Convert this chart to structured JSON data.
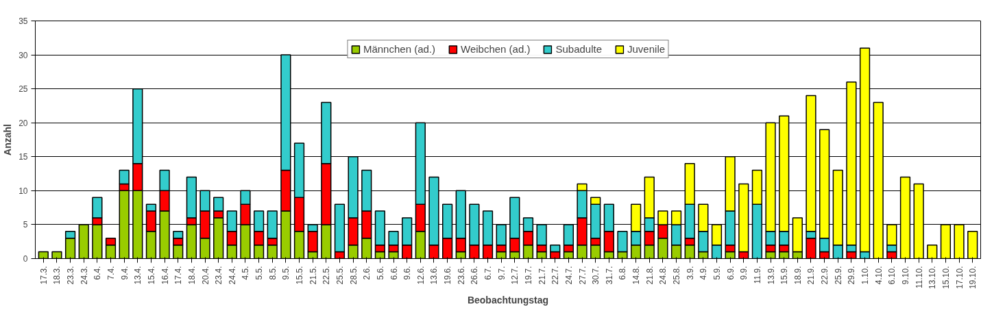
{
  "chart_data": {
    "type": "bar",
    "stacked": true,
    "xlabel": "Beobachtungstag",
    "ylabel": "Anzahl",
    "categories": [
      "17.3.",
      "18.3.",
      "23.3.",
      "24.3.",
      "6.4.",
      "7.4.",
      "9.4.",
      "13.4.",
      "15.4.",
      "16.4.",
      "17.4.",
      "18.4.",
      "20.4.",
      "23.4.",
      "24.4.",
      "4.5.",
      "5.5.",
      "8.5.",
      "9.5.",
      "15.5.",
      "21.5.",
      "22.5.",
      "25.5.",
      "28.5.",
      "2.6.",
      "5.6.",
      "6.6.",
      "9.6.",
      "12.6.",
      "13.6.",
      "19.6.",
      "23.6.",
      "26.6.",
      "6.7.",
      "9.7.",
      "12.7.",
      "19.7.",
      "21.7.",
      "22.7.",
      "24.7.",
      "27.7.",
      "30.7.",
      "31.7.",
      "6.8.",
      "14.8.",
      "21.8.",
      "24.8.",
      "25.8.",
      "3.9.",
      "4.9.",
      "5.9.",
      "6.9.",
      "9.9.",
      "11.9.",
      "13.9.",
      "15.9.",
      "18.9.",
      "21.9.",
      "22.9.",
      "25.9.",
      "29.9.",
      "1.10.",
      "4.10.",
      "6.10.",
      "9.10.",
      "11.10.",
      "13.10.",
      "15.10.",
      "17.10.",
      "19.10."
    ],
    "series": [
      {
        "name": "Männchen (ad.)",
        "color": "#99cc00",
        "values": [
          1,
          1,
          3,
          5,
          5,
          2,
          10,
          10,
          4,
          7,
          2,
          5,
          3,
          6,
          2,
          5,
          2,
          2,
          7,
          4,
          1,
          5,
          0,
          2,
          3,
          1,
          1,
          0,
          4,
          0,
          0,
          1,
          0,
          0,
          1,
          1,
          2,
          1,
          0,
          1,
          2,
          2,
          1,
          1,
          2,
          2,
          3,
          2,
          2,
          1,
          0,
          1,
          0,
          0,
          1,
          1,
          1,
          0,
          0,
          0,
          0,
          0,
          0,
          0,
          0,
          0,
          0,
          0,
          0,
          0
        ]
      },
      {
        "name": "Weibchen (ad.)",
        "color": "#ff0000",
        "values": [
          0,
          0,
          0,
          0,
          1,
          1,
          1,
          4,
          3,
          3,
          1,
          1,
          4,
          1,
          2,
          3,
          2,
          1,
          6,
          5,
          3,
          9,
          1,
          4,
          4,
          1,
          1,
          2,
          4,
          2,
          3,
          2,
          2,
          2,
          1,
          2,
          2,
          1,
          1,
          1,
          4,
          1,
          3,
          0,
          0,
          2,
          2,
          0,
          1,
          0,
          0,
          1,
          1,
          0,
          1,
          1,
          0,
          3,
          1,
          0,
          1,
          0,
          0,
          1,
          0,
          0,
          0,
          0,
          0,
          0
        ]
      },
      {
        "name": "Subadulte",
        "color": "#33cccc",
        "values": [
          0,
          0,
          1,
          0,
          3,
          0,
          2,
          11,
          1,
          3,
          1,
          6,
          3,
          2,
          3,
          2,
          3,
          4,
          17,
          8,
          1,
          9,
          7,
          9,
          6,
          5,
          2,
          4,
          12,
          10,
          5,
          7,
          6,
          5,
          3,
          6,
          2,
          3,
          1,
          3,
          4,
          5,
          4,
          3,
          2,
          2,
          0,
          3,
          5,
          3,
          2,
          5,
          0,
          8,
          2,
          2,
          0,
          1,
          2,
          2,
          1,
          1,
          0,
          1,
          0,
          0,
          0,
          0,
          0,
          0
        ]
      },
      {
        "name": "Juvenile",
        "color": "#ffff00",
        "values": [
          0,
          0,
          0,
          0,
          0,
          0,
          0,
          0,
          0,
          0,
          0,
          0,
          0,
          0,
          0,
          0,
          0,
          0,
          0,
          0,
          0,
          0,
          0,
          0,
          0,
          0,
          0,
          0,
          0,
          0,
          0,
          0,
          0,
          0,
          0,
          0,
          0,
          0,
          0,
          0,
          1,
          1,
          0,
          0,
          4,
          6,
          2,
          2,
          6,
          4,
          3,
          8,
          10,
          5,
          16,
          17,
          5,
          20,
          16,
          11,
          24,
          30,
          23,
          3,
          12,
          11,
          2,
          5,
          5,
          4
        ]
      }
    ],
    "ylim": [
      0,
      35
    ],
    "yticks": [
      0,
      5,
      10,
      15,
      20,
      25,
      30,
      35
    ],
    "grid": "y",
    "legend": "top"
  }
}
